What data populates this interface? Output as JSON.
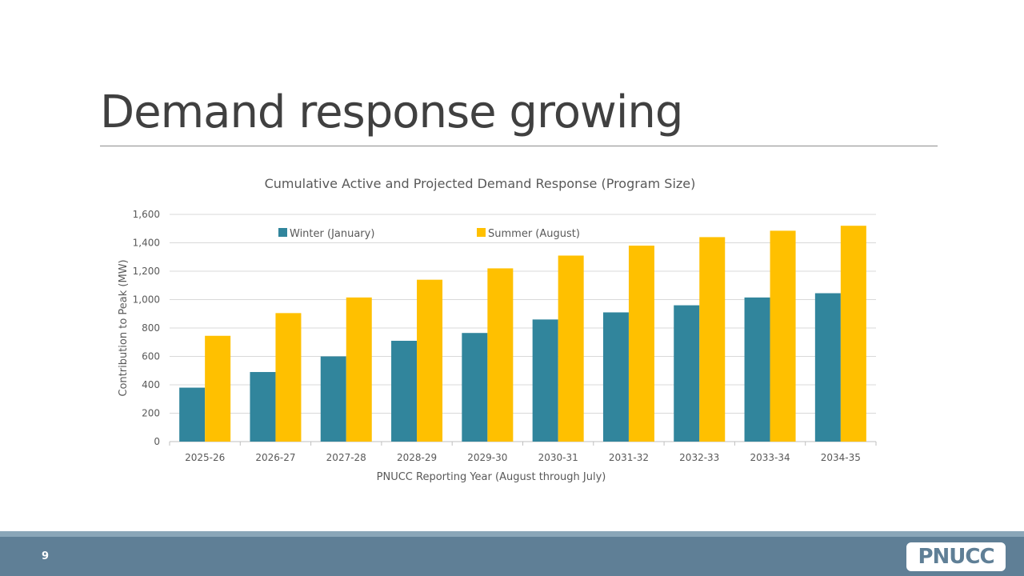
{
  "slide": {
    "title": "Demand response growing",
    "page_number": "9",
    "logo_text": "PNUCC"
  },
  "colors": {
    "winter": "#31859c",
    "summer": "#ffc000",
    "footer": "#5f7f96",
    "grid": "#d9d9d9"
  },
  "chart_data": {
    "type": "bar",
    "title": "Cumulative Active and Projected Demand Response (Program Size)",
    "xlabel": "PNUCC Reporting  Year (August through July)",
    "ylabel": "Contribution to Peak (MW)",
    "ylim": [
      0,
      1600
    ],
    "yticks": [
      0,
      200,
      400,
      600,
      800,
      1000,
      1200,
      1400,
      1600
    ],
    "ytick_labels": [
      "0",
      "200",
      "400",
      "600",
      "800",
      "1,000",
      "1,200",
      "1,400",
      "1,600"
    ],
    "grid": true,
    "legend_position": "top",
    "categories": [
      "2025-26",
      "2026-27",
      "2027-28",
      "2028-29",
      "2029-30",
      "2030-31",
      "2031-32",
      "2032-33",
      "2033-34",
      "2034-35"
    ],
    "series": [
      {
        "name": "Winter (January)",
        "values": [
          380,
          490,
          600,
          710,
          765,
          860,
          910,
          960,
          1015,
          1045
        ]
      },
      {
        "name": "Summer (August)",
        "values": [
          745,
          905,
          1015,
          1140,
          1220,
          1310,
          1380,
          1440,
          1485,
          1520
        ]
      }
    ]
  }
}
